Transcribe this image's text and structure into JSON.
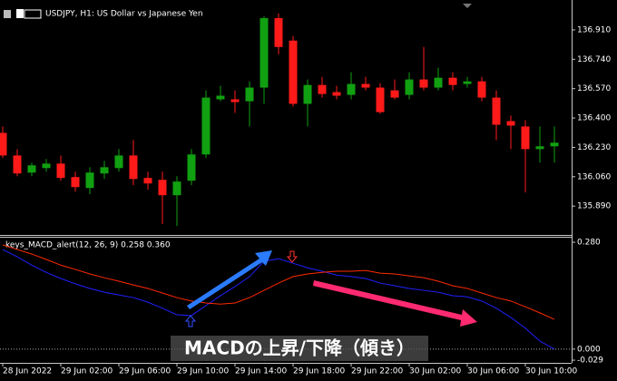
{
  "chart_data": [
    {
      "type": "candlestick",
      "title": "USDJPY, H1:  US Dollar vs Japanese Yen",
      "categories": [
        "28 Jun 2022",
        null,
        null,
        null,
        "29 Jun 02:00",
        null,
        null,
        null,
        "29 Jun 06:00",
        null,
        null,
        null,
        "29 Jun 10:00",
        null,
        null,
        null,
        "29 Jun 14:00",
        null,
        null,
        null,
        "29 Jun 18:00",
        null,
        null,
        null,
        "29 Jun 22:00",
        null,
        null,
        null,
        "30 Jun 02:00",
        null,
        null,
        null,
        "30 Jun 06:00",
        null,
        null,
        null,
        "30 Jun 10:00",
        null,
        null
      ],
      "open": [
        136.314,
        136.183,
        136.084,
        136.11,
        136.136,
        136.058,
        135.995,
        136.079,
        136.11,
        136.183,
        136.053,
        136.042,
        135.953,
        136.037,
        136.189,
        136.508,
        136.508,
        136.497,
        136.576,
        136.978,
        136.848,
        136.482,
        136.591,
        136.55,
        136.534,
        136.597,
        136.576,
        136.56,
        136.534,
        136.623,
        136.576,
        136.633,
        136.597,
        136.612,
        136.518,
        136.382,
        136.351,
        136.22,
        136.236
      ],
      "high": [
        136.351,
        136.22,
        136.142,
        136.163,
        136.183,
        136.089,
        136.115,
        136.152,
        136.22,
        136.272,
        136.089,
        136.089,
        136.063,
        136.22,
        136.56,
        136.586,
        136.56,
        136.612,
        136.989,
        137.005,
        136.874,
        136.623,
        136.638,
        136.586,
        136.665,
        136.638,
        136.602,
        136.623,
        136.665,
        136.811,
        136.691,
        136.665,
        136.638,
        136.638,
        136.56,
        136.414,
        136.387,
        136.351,
        136.351
      ],
      "low": [
        136.168,
        136.063,
        136.063,
        136.089,
        136.037,
        135.974,
        135.959,
        136.047,
        136.089,
        136.011,
        135.985,
        135.786,
        135.775,
        136.011,
        136.168,
        136.497,
        136.429,
        136.351,
        136.482,
        136.769,
        136.466,
        136.351,
        136.518,
        136.508,
        136.508,
        136.56,
        136.424,
        136.508,
        136.508,
        136.56,
        136.56,
        136.56,
        136.576,
        136.497,
        136.272,
        136.22,
        135.969,
        136.142,
        136.142
      ],
      "close": [
        136.183,
        136.079,
        136.126,
        136.136,
        136.053,
        136.0,
        136.084,
        136.115,
        136.183,
        136.047,
        136.021,
        135.953,
        136.032,
        136.189,
        136.518,
        136.529,
        136.492,
        136.576,
        136.978,
        136.811,
        136.482,
        136.591,
        136.539,
        136.529,
        136.597,
        136.576,
        136.434,
        136.518,
        136.623,
        136.576,
        136.633,
        136.591,
        136.612,
        136.518,
        136.361,
        136.356,
        136.22,
        136.236,
        136.257
      ],
      "up_color": "#11a011",
      "down_color": "#ff1a1a",
      "ylim": [
        135.723,
        137.083
      ],
      "yticks": [
        {
          "value": 136.91,
          "label": "136.910"
        },
        {
          "value": 136.74,
          "label": "136.740"
        },
        {
          "value": 136.57,
          "label": "136.570"
        },
        {
          "value": 136.4,
          "label": "136.400"
        },
        {
          "value": 136.23,
          "label": "136.230"
        },
        {
          "value": 136.06,
          "label": "136.060"
        },
        {
          "value": 135.89,
          "label": "135.890"
        }
      ],
      "grid": false
    },
    {
      "type": "line",
      "title": "keys_MACD_alert(12, 26, 9) 0.258 0.360",
      "series": [
        {
          "color": "#2020ff",
          "values": [
            0.261,
            0.242,
            0.22,
            0.201,
            0.185,
            0.171,
            0.159,
            0.149,
            0.142,
            0.135,
            0.123,
            0.107,
            0.09,
            0.088,
            0.114,
            0.14,
            0.164,
            0.19,
            0.23,
            0.237,
            0.225,
            0.213,
            0.204,
            0.194,
            0.19,
            0.185,
            0.173,
            0.166,
            0.159,
            0.154,
            0.149,
            0.14,
            0.137,
            0.126,
            0.107,
            0.083,
            0.055,
            0.021,
            0.0
          ]
        },
        {
          "color": "#ff2a00",
          "values": [
            0.273,
            0.261,
            0.249,
            0.235,
            0.22,
            0.209,
            0.197,
            0.187,
            0.178,
            0.168,
            0.159,
            0.147,
            0.135,
            0.126,
            0.121,
            0.118,
            0.121,
            0.135,
            0.154,
            0.173,
            0.19,
            0.197,
            0.201,
            0.204,
            0.204,
            0.206,
            0.199,
            0.197,
            0.192,
            0.187,
            0.178,
            0.166,
            0.159,
            0.147,
            0.135,
            0.126,
            0.111,
            0.095,
            0.078
          ]
        }
      ],
      "ylim": [
        -0.036,
        0.292
      ],
      "yticks": [
        {
          "value": 0.28,
          "label": "0.280"
        },
        {
          "value": 0,
          "label": "0.000"
        },
        {
          "value": -0.029,
          "label": "-0.029"
        }
      ],
      "zero_line": true,
      "annotation": "MACDの上昇/下降（傾き）"
    }
  ]
}
